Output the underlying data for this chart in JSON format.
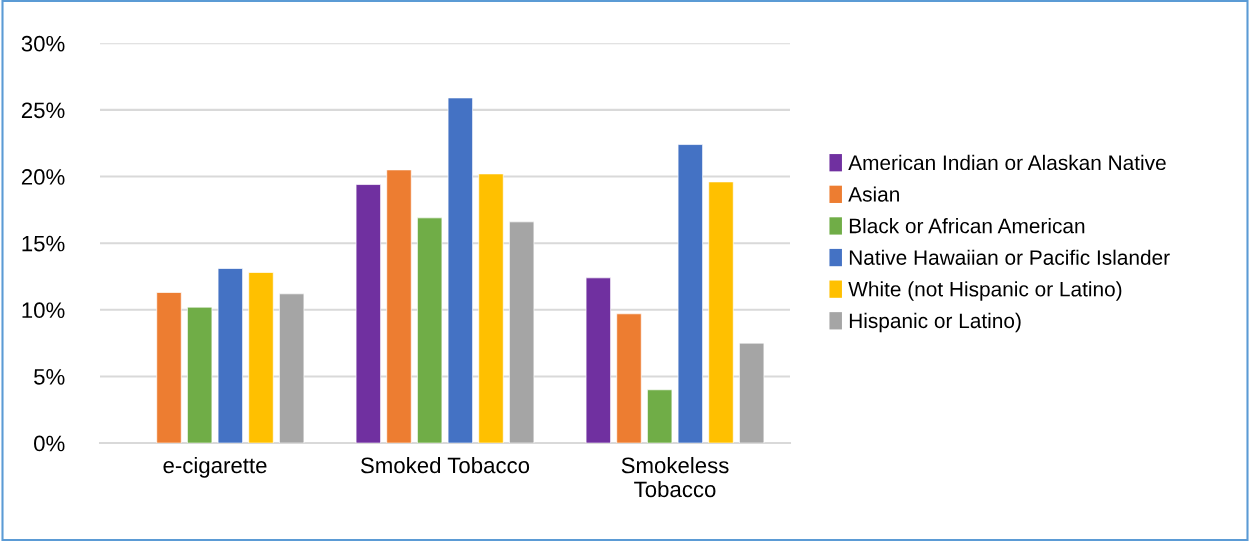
{
  "chart_data": {
    "type": "bar",
    "categories": [
      "e-cigarette",
      "Smoked Tobacco",
      "Smokeless\nTobacco"
    ],
    "series": [
      {
        "name": "American Indian or Alaskan Native",
        "color": "#7030a0",
        "values": [
          null,
          19.4,
          12.4
        ]
      },
      {
        "name": "Asian",
        "color": "#ed7d31",
        "values": [
          11.3,
          20.5,
          9.7
        ]
      },
      {
        "name": "Black or African American",
        "color": "#70ad47",
        "values": [
          10.2,
          16.9,
          4.0
        ]
      },
      {
        "name": "Native Hawaiian or Pacific Islander",
        "color": "#4472c4",
        "values": [
          13.1,
          25.9,
          22.4
        ]
      },
      {
        "name": "White (not Hispanic or Latino)",
        "color": "#ffc000",
        "values": [
          12.8,
          20.2,
          19.6
        ]
      },
      {
        "name": "Hispanic or Latino)",
        "color": "#a5a5a5",
        "values": [
          11.2,
          16.6,
          7.5
        ]
      }
    ],
    "ylim": [
      0,
      30
    ],
    "yticks": [
      {
        "value": 0,
        "label": "0%"
      },
      {
        "value": 5,
        "label": "5%"
      },
      {
        "value": 10,
        "label": "10%"
      },
      {
        "value": 15,
        "label": "15%"
      },
      {
        "value": 20,
        "label": "20%"
      },
      {
        "value": 25,
        "label": "25%"
      },
      {
        "value": 30,
        "label": "30%"
      }
    ],
    "grid": "y",
    "legend": "right"
  }
}
